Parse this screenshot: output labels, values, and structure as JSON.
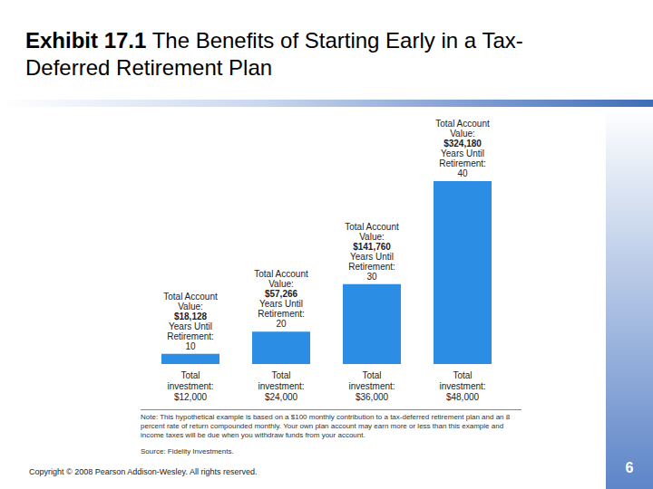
{
  "chart_data": {
    "type": "bar",
    "exhibit": "Exhibit 17.1",
    "title": "The Benefits of Starting Early in a Tax-Deferred Retirement Plan",
    "categories": [
      null,
      null,
      null,
      null
    ],
    "values": [
      18128,
      57266,
      141760,
      324180
    ],
    "value_labels": [
      "$18,128",
      "$57,266",
      "$141,760",
      "$324,180"
    ],
    "value_caption": "Total Account Value:",
    "years_caption": "Years Until Retirement:",
    "years": [
      10,
      20,
      30,
      40
    ],
    "investment_caption": "Total investment:",
    "investments": [
      12000,
      24000,
      36000,
      48000
    ],
    "investment_labels": [
      "$12,000",
      "$24,000",
      "$36,000",
      "$48,000"
    ],
    "color": "#2b8de3",
    "ylim": [
      0,
      324180
    ],
    "tick_labels": false,
    "data_labels": true,
    "note": "Note: This hypothetical example is based on a $100 monthly contribution to a tax-deferred retirement plan and an 8 percent rate of return compounded monthly. Your own plan account may earn more or less than this example and income taxes will be due when you withdraw funds from your account.",
    "source": "Source: Fidelity Investments.",
    "copyright": "Copyright © 2008 Pearson Addison-Wesley. All rights reserved.",
    "page": 6
  }
}
